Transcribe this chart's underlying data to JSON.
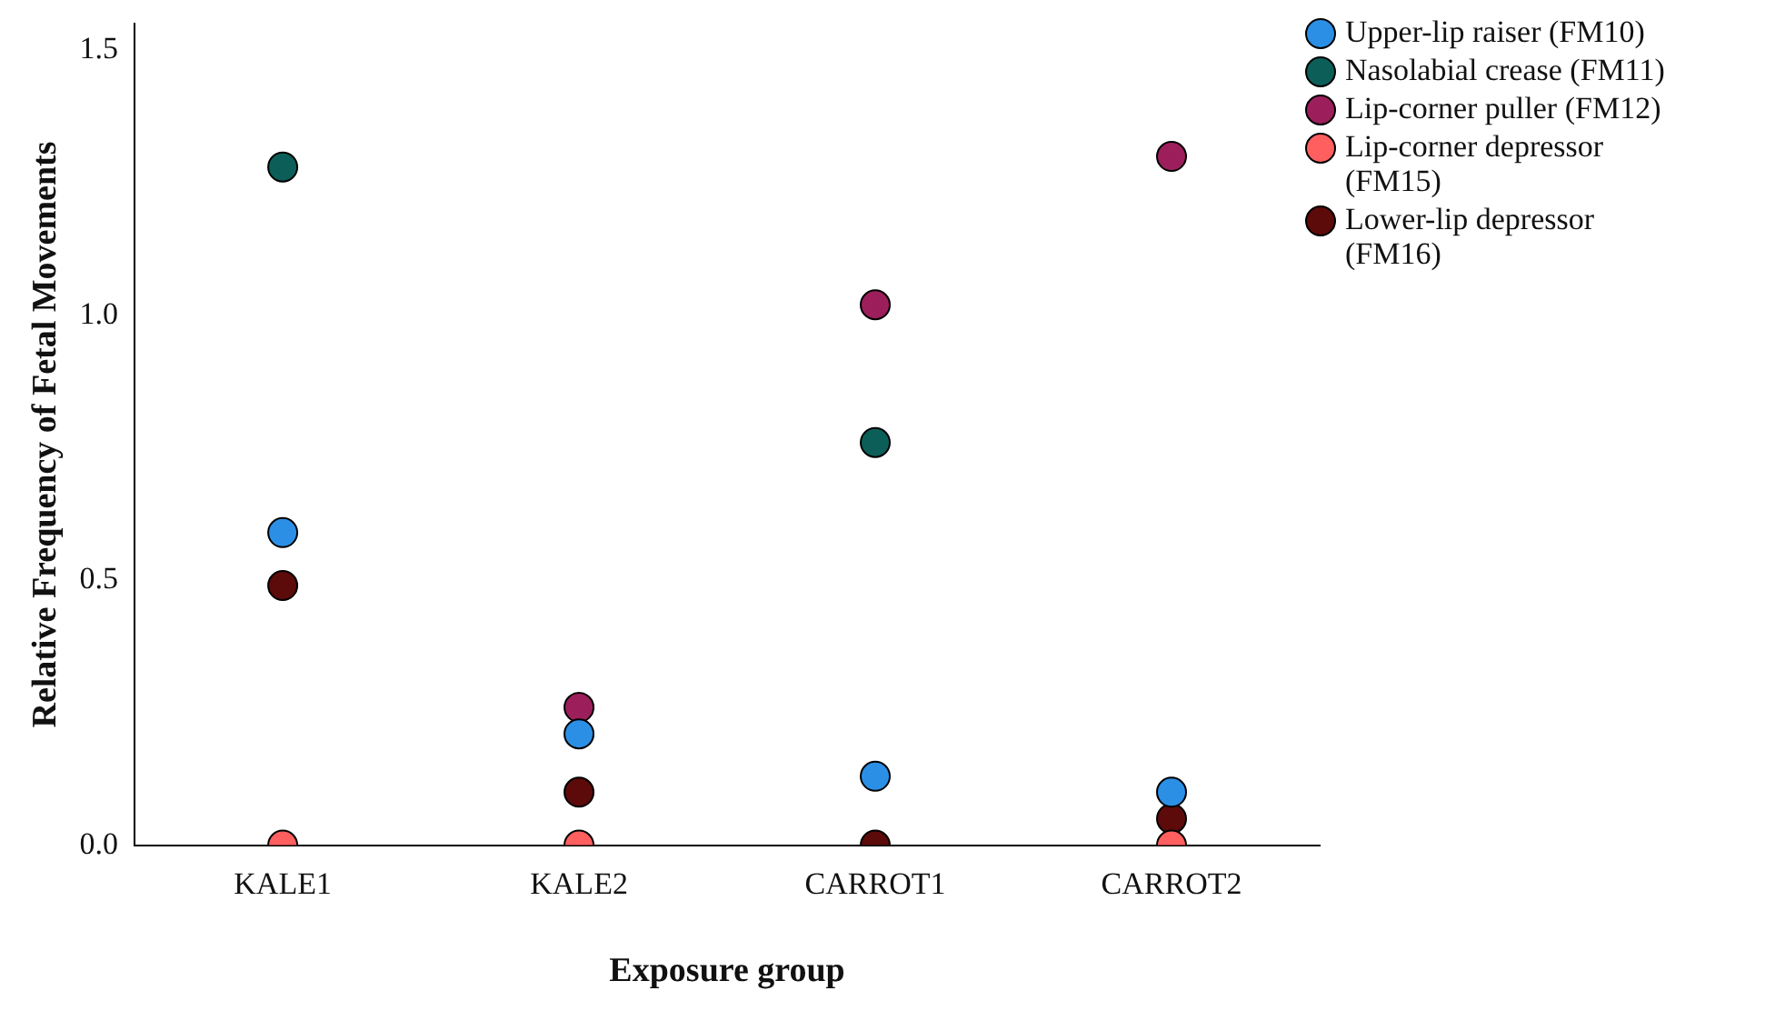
{
  "chart_data": {
    "type": "scatter",
    "xlabel": "Exposure group",
    "ylabel": "Relative Frequency of Fetal Movements",
    "categories": [
      "KALE1",
      "KALE2",
      "CARROT1",
      "CARROT2"
    ],
    "series": [
      {
        "name": "Upper-lip raiser (FM10)",
        "color": "#2b8fe6",
        "values": [
          0.59,
          0.21,
          0.13,
          0.1
        ]
      },
      {
        "name": "Nasolabial crease (FM11)",
        "color": "#0c5f58",
        "values": [
          1.28,
          null,
          0.76,
          null
        ]
      },
      {
        "name": "Lip-corner puller (FM12)",
        "color": "#9c1f5c",
        "values": [
          null,
          0.26,
          1.02,
          1.3
        ]
      },
      {
        "name": "Lip-corner depressor (FM15)",
        "color": "#ff5f5f",
        "values": [
          0,
          0,
          null,
          0
        ]
      },
      {
        "name": "Lower-lip depressor (FM16)",
        "color": "#5c0a0a",
        "values": [
          0.49,
          0.1,
          0,
          0.05
        ]
      }
    ],
    "ylim": [
      0,
      1.55
    ],
    "yticks": [
      {
        "value": 0,
        "label": "0.0"
      },
      {
        "value": 0.5,
        "label": "0.5"
      },
      {
        "value": 1,
        "label": "1.0"
      },
      {
        "value": 1.5,
        "label": "1.5"
      }
    ],
    "grid": false,
    "legend": "top right",
    "marker": "circle"
  }
}
